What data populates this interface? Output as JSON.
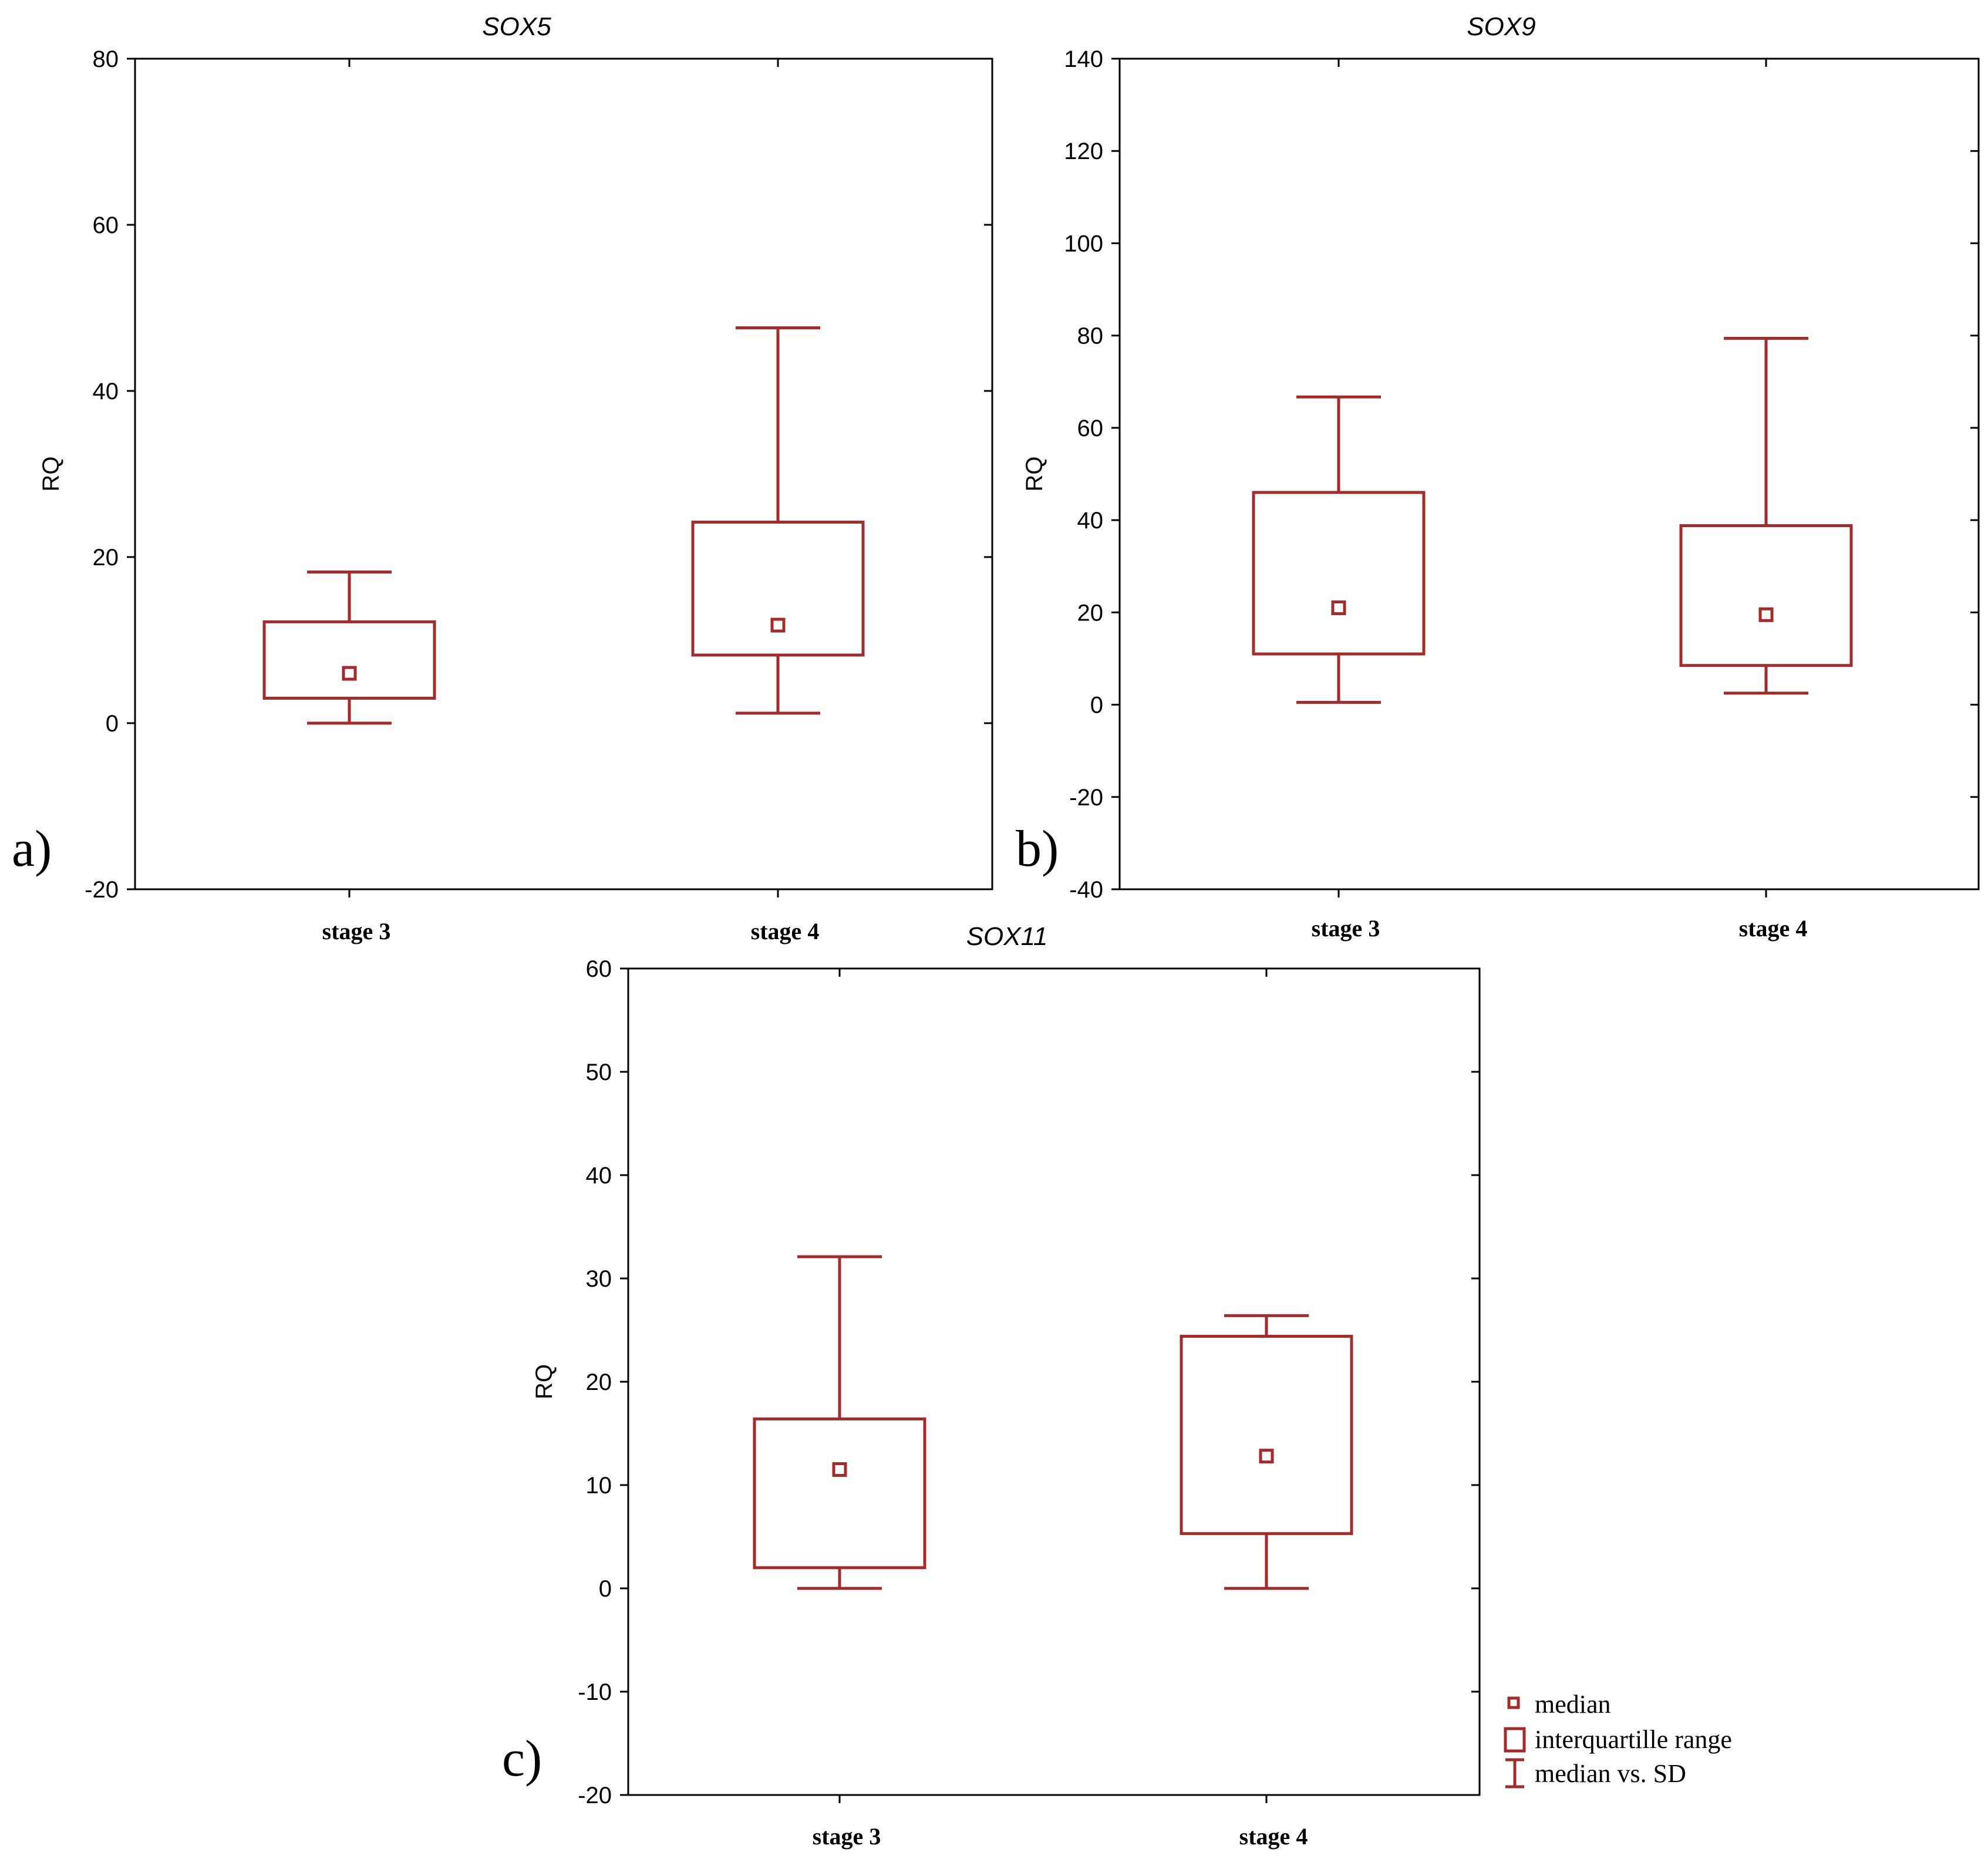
{
  "colors": {
    "series": "#a52a2a",
    "axis": "#000000",
    "background": "#ffffff"
  },
  "legend": {
    "placement": "bottom-right",
    "items": [
      {
        "label": "median",
        "icon": "median-square-icon"
      },
      {
        "label": "interquartille range",
        "icon": "box-icon"
      },
      {
        "label": "median vs. SD",
        "icon": "whisker-icon"
      }
    ]
  },
  "chart_data": [
    {
      "type": "box",
      "panel_letter": "a)",
      "title": "SOX5",
      "ylabel": "RQ",
      "xlabel": "",
      "ylim": [
        -20,
        80
      ],
      "yticks": [
        -20,
        0,
        20,
        40,
        60,
        80
      ],
      "grid": false,
      "categories": [
        "stage 3",
        "stage 4"
      ],
      "boxes": [
        {
          "category": "stage 3",
          "whisker_low": 0,
          "q1": 3,
          "median": 6,
          "q3": 12.2,
          "whisker_high": 18.2
        },
        {
          "category": "stage 4",
          "whisker_low": 1.2,
          "q1": 8.2,
          "median": 11.8,
          "q3": 24.2,
          "whisker_high": 47.6
        }
      ]
    },
    {
      "type": "box",
      "panel_letter": "b)",
      "title": "SOX9",
      "ylabel": "RQ",
      "xlabel": "",
      "ylim": [
        -40,
        140
      ],
      "yticks": [
        -40,
        -20,
        0,
        20,
        40,
        60,
        80,
        100,
        120,
        140
      ],
      "grid": false,
      "categories": [
        "stage 3",
        "stage 4"
      ],
      "boxes": [
        {
          "category": "stage 3",
          "whisker_low": 0.5,
          "q1": 11,
          "median": 21,
          "q3": 46,
          "whisker_high": 66.7
        },
        {
          "category": "stage 4",
          "whisker_low": 2.5,
          "q1": 8.5,
          "median": 19.5,
          "q3": 38.8,
          "whisker_high": 79.4
        }
      ]
    },
    {
      "type": "box",
      "panel_letter": "c)",
      "title": "SOX11",
      "ylabel": "RQ",
      "xlabel": "",
      "ylim": [
        -20,
        60
      ],
      "yticks": [
        -20,
        -10,
        0,
        10,
        20,
        30,
        40,
        50,
        60
      ],
      "grid": false,
      "categories": [
        "stage 3",
        "stage 4"
      ],
      "boxes": [
        {
          "category": "stage 3",
          "whisker_low": 0,
          "q1": 2,
          "median": 11.5,
          "q3": 16.4,
          "whisker_high": 32.1
        },
        {
          "category": "stage 4",
          "whisker_low": 0,
          "q1": 5.3,
          "median": 12.8,
          "q3": 24.4,
          "whisker_high": 26.4
        }
      ]
    }
  ]
}
